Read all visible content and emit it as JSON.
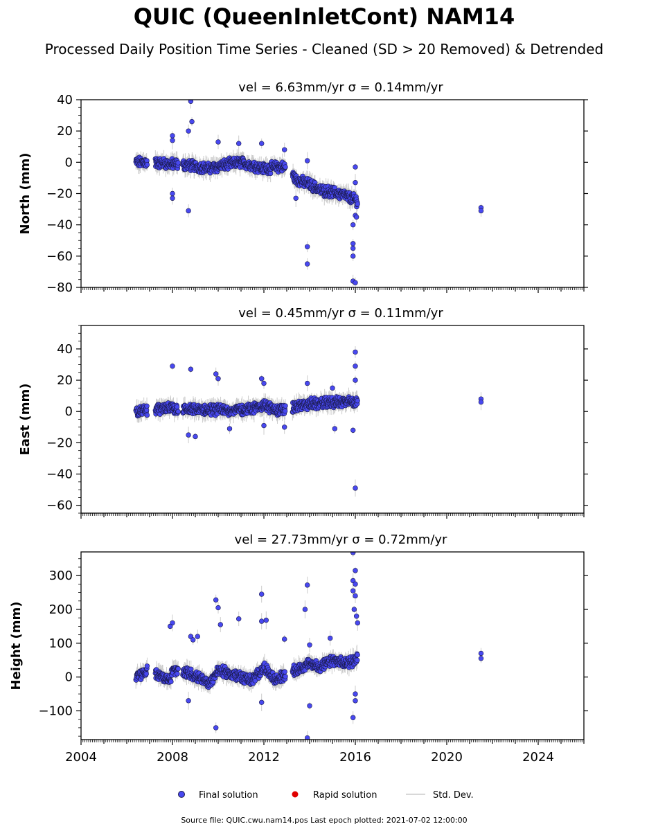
{
  "figure": {
    "title": "QUIC (QueenInletCont) NAM14",
    "subtitle": "Processed Daily Position Time Series - Cleaned (SD > 20 Removed) & Detrended",
    "footer": "Source file: QUIC.cwu.nam14.pos  Last epoch plotted: 2021-07-02 12:00:00"
  },
  "legend": {
    "items": [
      {
        "label": "Final solution",
        "color": "#4848f0",
        "kind": "marker"
      },
      {
        "label": "Rapid solution",
        "color": "#e00000",
        "kind": "marker"
      },
      {
        "label": "Std. Dev.",
        "color": "#cccccc",
        "kind": "line"
      }
    ]
  },
  "colors": {
    "final": "#4848f0",
    "final_edge": "#1a1a4a",
    "rapid": "#e00000",
    "stddev": "#cccccc"
  },
  "chart_data": [
    {
      "type": "scatter",
      "title": "vel = 6.63mm/yr   σ = 0.14mm/yr",
      "ylabel": "North (mm)",
      "xlim": [
        2004,
        2026
      ],
      "ylim": [
        -80,
        40
      ],
      "yticks": [
        -80,
        -60,
        -40,
        -20,
        0,
        20,
        40
      ],
      "ytick_labels": [
        "−80",
        "−60",
        "−40",
        "−20",
        "0",
        "20",
        "40"
      ],
      "show_xtick_labels": false,
      "series": [
        {
          "name": "Final solution",
          "trend": [
            [
              2006.4,
              0
            ],
            [
              2007.0,
              0
            ],
            [
              2007.9,
              -1
            ],
            [
              2008.8,
              -2
            ],
            [
              2009.6,
              -4
            ],
            [
              2010.5,
              -1
            ],
            [
              2011.0,
              0
            ],
            [
              2011.5,
              -2
            ],
            [
              2012.0,
              -4
            ],
            [
              2012.5,
              -3
            ],
            [
              2013.0,
              -3
            ],
            [
              2013.4,
              -11
            ],
            [
              2014.0,
              -14
            ],
            [
              2014.5,
              -18
            ],
            [
              2015.0,
              -19
            ],
            [
              2015.5,
              -21
            ],
            [
              2016.0,
              -24
            ],
            [
              2016.1,
              -25
            ]
          ],
          "outliers": [
            [
              2008.8,
              39
            ],
            [
              2008.85,
              26
            ],
            [
              2008.7,
              20
            ],
            [
              2008.0,
              17
            ],
            [
              2008.0,
              14
            ],
            [
              2008.7,
              -31
            ],
            [
              2008.0,
              -20
            ],
            [
              2008.0,
              -23
            ],
            [
              2010.0,
              13
            ],
            [
              2010.9,
              12
            ],
            [
              2011.9,
              12
            ],
            [
              2012.9,
              8
            ],
            [
              2013.9,
              1
            ],
            [
              2013.9,
              -54
            ],
            [
              2013.9,
              -65
            ],
            [
              2013.4,
              -23
            ],
            [
              2015.9,
              -40
            ],
            [
              2015.9,
              -52
            ],
            [
              2015.9,
              -55
            ],
            [
              2015.9,
              -60
            ],
            [
              2015.9,
              -76
            ],
            [
              2016.0,
              -77
            ],
            [
              2016.0,
              -34
            ],
            [
              2016.05,
              -35
            ],
            [
              2016.0,
              -3
            ],
            [
              2016.0,
              -13
            ],
            [
              2021.5,
              -29
            ],
            [
              2021.5,
              -31
            ]
          ]
        }
      ]
    },
    {
      "type": "scatter",
      "title": "vel = 0.45mm/yr   σ = 0.11mm/yr",
      "ylabel": "East (mm)",
      "xlim": [
        2004,
        2026
      ],
      "ylim": [
        -65,
        55
      ],
      "yticks": [
        -60,
        -40,
        -20,
        0,
        20,
        40
      ],
      "ytick_labels": [
        "−60",
        "−40",
        "−20",
        "0",
        "20",
        "40"
      ],
      "show_xtick_labels": false,
      "series": [
        {
          "name": "Final solution",
          "trend": [
            [
              2006.4,
              0
            ],
            [
              2007.0,
              1
            ],
            [
              2007.9,
              2
            ],
            [
              2008.8,
              1
            ],
            [
              2009.6,
              1
            ],
            [
              2010.5,
              1
            ],
            [
              2011.0,
              1
            ],
            [
              2011.5,
              2
            ],
            [
              2012.0,
              4
            ],
            [
              2012.5,
              1
            ],
            [
              2013.0,
              1
            ],
            [
              2013.4,
              3
            ],
            [
              2014.0,
              5
            ],
            [
              2014.5,
              5
            ],
            [
              2015.0,
              6
            ],
            [
              2015.5,
              6
            ],
            [
              2016.0,
              6
            ],
            [
              2016.1,
              7
            ]
          ],
          "outliers": [
            [
              2008.0,
              29
            ],
            [
              2008.8,
              27
            ],
            [
              2009.9,
              24
            ],
            [
              2010.0,
              21
            ],
            [
              2011.9,
              21
            ],
            [
              2012.0,
              18
            ],
            [
              2013.9,
              18
            ],
            [
              2015.0,
              15
            ],
            [
              2016.0,
              38
            ],
            [
              2016.0,
              29
            ],
            [
              2016.0,
              20
            ],
            [
              2008.7,
              -15
            ],
            [
              2009.0,
              -16
            ],
            [
              2010.5,
              -11
            ],
            [
              2012.0,
              -9
            ],
            [
              2012.9,
              -10
            ],
            [
              2015.1,
              -11
            ],
            [
              2015.9,
              -12
            ],
            [
              2016.0,
              -49
            ],
            [
              2021.5,
              8
            ],
            [
              2021.5,
              6
            ]
          ]
        }
      ]
    },
    {
      "type": "scatter",
      "title": "vel = 27.73mm/yr   σ = 0.72mm/yr",
      "ylabel": "Height (mm)",
      "xlim": [
        2004,
        2026
      ],
      "ylim": [
        -185,
        370
      ],
      "yticks": [
        -100,
        0,
        100,
        200,
        300
      ],
      "ytick_labels": [
        "−100",
        "0",
        "100",
        "200",
        "300"
      ],
      "xticks": [
        2004,
        2008,
        2012,
        2016,
        2020,
        2024
      ],
      "xtick_labels": [
        "2004",
        "2008",
        "2012",
        "2016",
        "2020",
        "2024"
      ],
      "show_xtick_labels": true,
      "series": [
        {
          "name": "Final solution",
          "trend": [
            [
              2006.4,
              0
            ],
            [
              2007.0,
              20
            ],
            [
              2007.9,
              -10
            ],
            [
              2008.0,
              20
            ],
            [
              2008.8,
              10
            ],
            [
              2009.3,
              -10
            ],
            [
              2009.6,
              -20
            ],
            [
              2010.0,
              20
            ],
            [
              2010.5,
              10
            ],
            [
              2011.0,
              0
            ],
            [
              2011.5,
              -10
            ],
            [
              2012.0,
              30
            ],
            [
              2012.5,
              -10
            ],
            [
              2013.0,
              10
            ],
            [
              2013.4,
              20
            ],
            [
              2014.0,
              40
            ],
            [
              2014.5,
              30
            ],
            [
              2015.0,
              50
            ],
            [
              2015.5,
              40
            ],
            [
              2016.0,
              50
            ],
            [
              2016.1,
              60
            ]
          ],
          "outliers": [
            [
              2008.0,
              160
            ],
            [
              2007.9,
              150
            ],
            [
              2008.8,
              120
            ],
            [
              2008.9,
              110
            ],
            [
              2009.1,
              120
            ],
            [
              2009.9,
              228
            ],
            [
              2010.0,
              205
            ],
            [
              2010.1,
              155
            ],
            [
              2010.9,
              172
            ],
            [
              2011.9,
              245
            ],
            [
              2011.9,
              165
            ],
            [
              2012.1,
              168
            ],
            [
              2012.9,
              112
            ],
            [
              2013.8,
              200
            ],
            [
              2013.9,
              272
            ],
            [
              2014.0,
              95
            ],
            [
              2014.9,
              115
            ],
            [
              2015.9,
              368
            ],
            [
              2016.0,
              315
            ],
            [
              2015.9,
              285
            ],
            [
              2016.0,
              275
            ],
            [
              2015.9,
              255
            ],
            [
              2016.0,
              240
            ],
            [
              2015.95,
              200
            ],
            [
              2016.05,
              180
            ],
            [
              2016.1,
              160
            ],
            [
              2009.9,
              -150
            ],
            [
              2008.7,
              -70
            ],
            [
              2011.9,
              -75
            ],
            [
              2014.0,
              -85
            ],
            [
              2013.9,
              -180
            ],
            [
              2015.9,
              -120
            ],
            [
              2016.0,
              -70
            ],
            [
              2016.0,
              -50
            ],
            [
              2021.5,
              70
            ],
            [
              2021.5,
              55
            ]
          ]
        }
      ]
    }
  ]
}
